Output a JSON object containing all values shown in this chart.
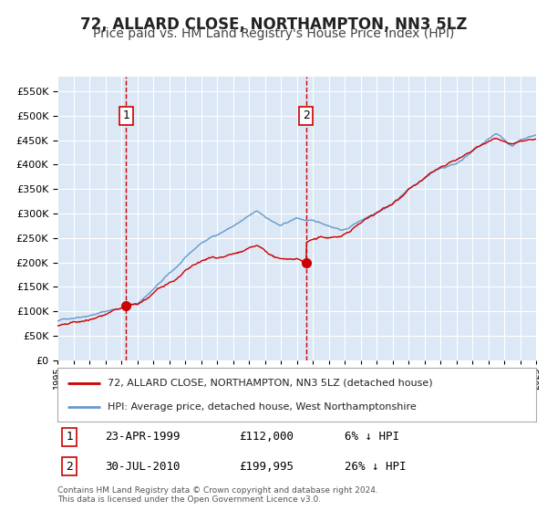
{
  "title": "72, ALLARD CLOSE, NORTHAMPTON, NN3 5LZ",
  "subtitle": "Price paid vs. HM Land Registry's House Price Index (HPI)",
  "title_fontsize": 12,
  "subtitle_fontsize": 10,
  "background_color": "#ffffff",
  "plot_bg_color": "#dce8f5",
  "grid_color": "#ffffff",
  "sale1": {
    "date_year": 1999.31,
    "price": 112000,
    "label": "1"
  },
  "sale2": {
    "date_year": 2010.58,
    "price": 199995,
    "label": "2"
  },
  "legend_line1": "72, ALLARD CLOSE, NORTHAMPTON, NN3 5LZ (detached house)",
  "legend_line2": "HPI: Average price, detached house, West Northamptonshire",
  "footer1": "Contains HM Land Registry data © Crown copyright and database right 2024.",
  "footer2": "This data is licensed under the Open Government Licence v3.0.",
  "table": [
    {
      "num": "1",
      "date": "23-APR-1999",
      "price": "£112,000",
      "diff": "6% ↓ HPI"
    },
    {
      "num": "2",
      "date": "30-JUL-2010",
      "price": "£199,995",
      "diff": "26% ↓ HPI"
    }
  ],
  "ylim": [
    0,
    580000
  ],
  "yticks": [
    0,
    50000,
    100000,
    150000,
    200000,
    250000,
    300000,
    350000,
    400000,
    450000,
    500000,
    550000
  ],
  "red_color": "#cc0000",
  "blue_color": "#6699cc",
  "dashed_color": "#cc0000"
}
